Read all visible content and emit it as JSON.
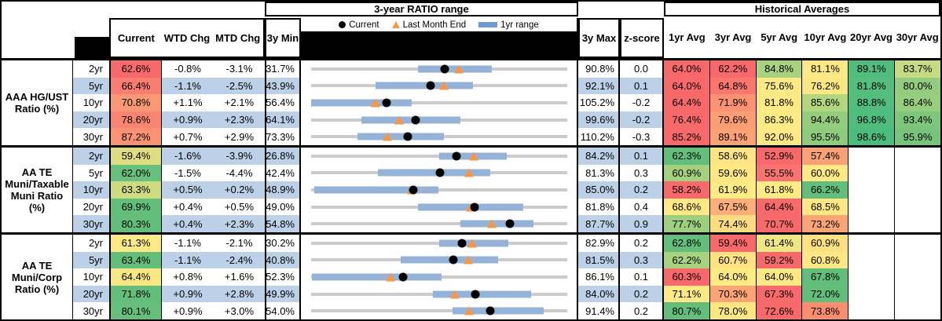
{
  "sections": {
    "range_title": "3-year RATIO range",
    "hist_title": "Historical Averages"
  },
  "legend": {
    "current": "Current",
    "last_month_end": "Last Month End",
    "range_1yr": "1yr range"
  },
  "columns": {
    "current": "Current",
    "wtd": "WTD Chg",
    "mtd": "MTD Chg",
    "min3y": "3y Min",
    "max3y": "3y Max",
    "zscore": "z-score",
    "avgs": [
      "1yr Avg",
      "3yr Avg",
      "5yr Avg",
      "10yr Avg",
      "20yr Avg",
      "30yr Avg"
    ]
  },
  "colors": {
    "stripe": "#BCD0E8",
    "bar_1yr": "#95B3D7",
    "track": "#CBCBCB",
    "marker_orange": "#F79646",
    "red": "#F8696B",
    "yellow": "#FFE984",
    "green": "#63BE7B"
  },
  "groups": [
    {
      "label": "AAA HG/UST Ratio (%)",
      "rows": [
        {
          "tenor": "2yr",
          "current": {
            "text": "62.6%",
            "bg": "#F8696B"
          },
          "wtd": "-0.8%",
          "mtd": "-3.1%",
          "min": {
            "text": "31.7%",
            "v": 31.7
          },
          "max": {
            "text": "90.8%",
            "v": 90.8
          },
          "z": "0.0",
          "cur": 62.6,
          "lme": 65.7,
          "r1": {
            "lo": 56.4,
            "hi": 73.4
          },
          "avgs": [
            {
              "text": "64.0%",
              "bg": "#F8696B"
            },
            {
              "text": "62.2%",
              "bg": "#F8696B"
            },
            {
              "text": "84.8%",
              "bg": "#A8D27F"
            },
            {
              "text": "81.1%",
              "bg": "#FFE984"
            },
            {
              "text": "89.1%",
              "bg": "#50BD7E"
            },
            {
              "text": "83.7%",
              "bg": "#C6DB81"
            }
          ]
        },
        {
          "tenor": "5yr",
          "current": {
            "text": "66.4%",
            "bg": "#F97E71"
          },
          "wtd": "-1.1%",
          "mtd": "-2.5%",
          "min": {
            "text": "43.9%",
            "v": 43.9
          },
          "max": {
            "text": "92.1%",
            "v": 92.1
          },
          "z": "0.1",
          "cur": 66.4,
          "lme": 68.9,
          "r1": {
            "lo": 56.0,
            "hi": 74.3
          },
          "avgs": [
            {
              "text": "64.0%",
              "bg": "#F8696B"
            },
            {
              "text": "64.8%",
              "bg": "#F9776E"
            },
            {
              "text": "75.6%",
              "bg": "#FFE984"
            },
            {
              "text": "76.2%",
              "bg": "#FCE883"
            },
            {
              "text": "81.8%",
              "bg": "#55BE7C"
            },
            {
              "text": "80.0%",
              "bg": "#93CC7E"
            }
          ]
        },
        {
          "tenor": "10yr",
          "current": {
            "text": "70.8%",
            "bg": "#FA9774"
          },
          "wtd": "+1.1%",
          "mtd": "+2.1%",
          "min": {
            "text": "56.4%",
            "v": 56.4
          },
          "max": {
            "text": "105.2%",
            "v": 105.2
          },
          "z": "-0.2",
          "cur": 70.8,
          "lme": 68.7,
          "r1": {
            "lo": 56.4,
            "hi": 75.6
          },
          "avgs": [
            {
              "text": "64.4%",
              "bg": "#F8696B"
            },
            {
              "text": "71.9%",
              "bg": "#FA9273"
            },
            {
              "text": "81.8%",
              "bg": "#FFE984"
            },
            {
              "text": "85.6%",
              "bg": "#B3D67F"
            },
            {
              "text": "88.8%",
              "bg": "#52BD7E"
            },
            {
              "text": "86.4%",
              "bg": "#97CE7E"
            }
          ]
        },
        {
          "tenor": "20yr",
          "current": {
            "text": "78.6%",
            "bg": "#F98471"
          },
          "wtd": "+0.9%",
          "mtd": "+2.3%",
          "min": {
            "text": "64.1%",
            "v": 64.1
          },
          "max": {
            "text": "99.6%",
            "v": 99.6
          },
          "z": "-0.2",
          "cur": 78.6,
          "lme": 76.3,
          "r1": {
            "lo": 71.1,
            "hi": 84.8
          },
          "avgs": [
            {
              "text": "76.4%",
              "bg": "#F8696B"
            },
            {
              "text": "79.6%",
              "bg": "#FB9D75"
            },
            {
              "text": "86.3%",
              "bg": "#FFEB84"
            },
            {
              "text": "94.4%",
              "bg": "#95CD7E"
            },
            {
              "text": "96.8%",
              "bg": "#4FBD7D"
            },
            {
              "text": "93.4%",
              "bg": "#7EC67C"
            }
          ]
        },
        {
          "tenor": "30yr",
          "current": {
            "text": "87.2%",
            "bg": "#FA9273"
          },
          "wtd": "+0.7%",
          "mtd": "+2.9%",
          "min": {
            "text": "73.3%",
            "v": 73.3
          },
          "max": {
            "text": "110.2%",
            "v": 110.2
          },
          "z": "-0.3",
          "cur": 87.2,
          "lme": 84.3,
          "r1": {
            "lo": 80.0,
            "hi": 92.4
          },
          "avgs": [
            {
              "text": "85.2%",
              "bg": "#F8696B"
            },
            {
              "text": "89.1%",
              "bg": "#FBA176"
            },
            {
              "text": "92.0%",
              "bg": "#FFE984"
            },
            {
              "text": "95.5%",
              "bg": "#8FCB7D"
            },
            {
              "text": "98.6%",
              "bg": "#4CBC7C"
            },
            {
              "text": "95.9%",
              "bg": "#78C47C"
            }
          ]
        }
      ]
    },
    {
      "label": "AA TE Muni/Taxable Muni Ratio (%)",
      "rows": [
        {
          "tenor": "2yr",
          "current": {
            "text": "59.4%",
            "bg": "#DEDD82"
          },
          "wtd": "-1.6%",
          "mtd": "-3.9%",
          "min": {
            "text": "26.8%",
            "v": 26.8
          },
          "max": {
            "text": "84.2%",
            "v": 84.2
          },
          "z": "0.1",
          "cur": 59.4,
          "lme": 63.3,
          "r1": {
            "lo": 55.5,
            "hi": 70.7
          },
          "avgs": [
            {
              "text": "62.3%",
              "bg": "#63BE7B"
            },
            {
              "text": "58.6%",
              "bg": "#FFE583"
            },
            {
              "text": "52.9%",
              "bg": "#F8696B"
            },
            {
              "text": "57.4%",
              "bg": "#FAA276"
            },
            null,
            null
          ]
        },
        {
          "tenor": "5yr",
          "current": {
            "text": "62.0%",
            "bg": "#68C07D"
          },
          "wtd": "-1.5%",
          "mtd": "-4.4%",
          "min": {
            "text": "42.4%",
            "v": 42.4
          },
          "max": {
            "text": "81.3%",
            "v": 81.3
          },
          "z": "0.3",
          "cur": 62.0,
          "lme": 66.4,
          "r1": {
            "lo": 52.6,
            "hi": 69.6
          },
          "avgs": [
            {
              "text": "60.9%",
              "bg": "#A5D17F"
            },
            {
              "text": "59.6%",
              "bg": "#FFE884"
            },
            {
              "text": "55.5%",
              "bg": "#F97470"
            },
            {
              "text": "60.0%",
              "bg": "#FFE984"
            },
            null,
            null
          ]
        },
        {
          "tenor": "10yr",
          "current": {
            "text": "63.3%",
            "bg": "#CFDB80"
          },
          "wtd": "+0.5%",
          "mtd": "+0.2%",
          "min": {
            "text": "48.9%",
            "v": 48.9
          },
          "max": {
            "text": "85.0%",
            "v": 85.0
          },
          "z": "0.2",
          "cur": 63.3,
          "lme": 63.1,
          "r1": {
            "lo": 49.3,
            "hi": 66.8
          },
          "avgs": [
            {
              "text": "58.2%",
              "bg": "#F8696B"
            },
            {
              "text": "61.9%",
              "bg": "#FFEB84"
            },
            {
              "text": "61.8%",
              "bg": "#FFEA84"
            },
            {
              "text": "66.2%",
              "bg": "#63BE7B"
            },
            null,
            null
          ]
        },
        {
          "tenor": "20yr",
          "current": {
            "text": "69.9%",
            "bg": "#63BE7B"
          },
          "wtd": "+0.4%",
          "mtd": "+0.5%",
          "min": {
            "text": "49.0%",
            "v": 49.0
          },
          "max": {
            "text": "81.8%",
            "v": 81.8
          },
          "z": "0.4",
          "cur": 69.9,
          "lme": 69.4,
          "r1": {
            "lo": 62.7,
            "hi": 76.2
          },
          "avgs": [
            {
              "text": "68.6%",
              "bg": "#FFE984"
            },
            {
              "text": "67.5%",
              "bg": "#FCAF78"
            },
            {
              "text": "64.4%",
              "bg": "#F8696B"
            },
            {
              "text": "68.5%",
              "bg": "#FEE883"
            },
            null,
            null
          ]
        },
        {
          "tenor": "30yr",
          "current": {
            "text": "80.3%",
            "bg": "#63BE7B"
          },
          "wtd": "+0.4%",
          "mtd": "+2.3%",
          "min": {
            "text": "54.8%",
            "v": 54.8
          },
          "max": {
            "text": "87.7%",
            "v": 87.7
          },
          "z": "0.9",
          "cur": 80.3,
          "lme": 78.0,
          "r1": {
            "lo": 74.0,
            "hi": 83.4
          },
          "avgs": [
            {
              "text": "77.7%",
              "bg": "#9DCF7E"
            },
            {
              "text": "74.4%",
              "bg": "#FFDC81"
            },
            {
              "text": "70.7%",
              "bg": "#F8696B"
            },
            {
              "text": "73.2%",
              "bg": "#FBA476"
            },
            null,
            null
          ]
        }
      ]
    },
    {
      "label": "AA TE Muni/Corp Ratio (%)",
      "rows": [
        {
          "tenor": "2yr",
          "current": {
            "text": "61.3%",
            "bg": "#FFE984"
          },
          "wtd": "-1.1%",
          "mtd": "-2.1%",
          "min": {
            "text": "30.2%",
            "v": 30.2
          },
          "max": {
            "text": "82.9%",
            "v": 82.9
          },
          "z": "0.2",
          "cur": 61.3,
          "lme": 63.4,
          "r1": {
            "lo": 56.6,
            "hi": 70.8
          },
          "avgs": [
            {
              "text": "62.8%",
              "bg": "#63BE7B"
            },
            {
              "text": "59.4%",
              "bg": "#F8696B"
            },
            {
              "text": "61.4%",
              "bg": "#EFE684"
            },
            {
              "text": "60.9%",
              "bg": "#FFE182"
            },
            null,
            null
          ]
        },
        {
          "tenor": "5yr",
          "current": {
            "text": "63.4%",
            "bg": "#63BE7B"
          },
          "wtd": "-1.1%",
          "mtd": "-2.4%",
          "min": {
            "text": "40.8%",
            "v": 40.8
          },
          "max": {
            "text": "81.5%",
            "v": 81.5
          },
          "z": "0.3",
          "cur": 63.4,
          "lme": 65.8,
          "r1": {
            "lo": 55.0,
            "hi": 70.5
          },
          "avgs": [
            {
              "text": "62.2%",
              "bg": "#A9D27F"
            },
            {
              "text": "60.7%",
              "bg": "#FFE383"
            },
            {
              "text": "59.2%",
              "bg": "#F8696B"
            },
            {
              "text": "60.8%",
              "bg": "#FFE884"
            },
            null,
            null
          ]
        },
        {
          "tenor": "10yr",
          "current": {
            "text": "64.4%",
            "bg": "#F9E783"
          },
          "wtd": "+0.8%",
          "mtd": "+1.6%",
          "min": {
            "text": "52.3%",
            "v": 52.3
          },
          "max": {
            "text": "86.1%",
            "v": 86.1
          },
          "z": "0.1",
          "cur": 64.4,
          "lme": 62.8,
          "r1": {
            "lo": 52.4,
            "hi": 69.5
          },
          "avgs": [
            {
              "text": "60.3%",
              "bg": "#F8696B"
            },
            {
              "text": "64.0%",
              "bg": "#FFEA84"
            },
            {
              "text": "64.0%",
              "bg": "#FFE984"
            },
            {
              "text": "67.8%",
              "bg": "#63BE7B"
            },
            null,
            null
          ]
        },
        {
          "tenor": "20yr",
          "current": {
            "text": "71.8%",
            "bg": "#63BE7B"
          },
          "wtd": "+0.9%",
          "mtd": "+2.8%",
          "min": {
            "text": "49.9%",
            "v": 49.9
          },
          "max": {
            "text": "84.0%",
            "v": 84.0
          },
          "z": "0.2",
          "cur": 71.8,
          "lme": 69.0,
          "r1": {
            "lo": 66.1,
            "hi": 79.2
          },
          "avgs": [
            {
              "text": "71.1%",
              "bg": "#FFE984"
            },
            {
              "text": "70.3%",
              "bg": "#FBA476"
            },
            {
              "text": "67.3%",
              "bg": "#F8696B"
            },
            {
              "text": "72.0%",
              "bg": "#63BE7B"
            },
            null,
            null
          ]
        },
        {
          "tenor": "30yr",
          "current": {
            "text": "80.1%",
            "bg": "#66BF7C"
          },
          "wtd": "+0.9%",
          "mtd": "+3.0%",
          "min": {
            "text": "54.0%",
            "v": 54.0
          },
          "max": {
            "text": "91.4%",
            "v": 91.4
          },
          "z": "0.2",
          "cur": 80.1,
          "lme": 77.1,
          "r1": {
            "lo": 74.7,
            "hi": 88.0
          },
          "avgs": [
            {
              "text": "80.7%",
              "bg": "#63BE7B"
            },
            {
              "text": "78.0%",
              "bg": "#FFE884"
            },
            {
              "text": "72.6%",
              "bg": "#F8696B"
            },
            {
              "text": "73.8%",
              "bg": "#F98D70"
            },
            null,
            null
          ]
        }
      ]
    }
  ],
  "chart_data": {
    "type": "range",
    "title": "3-year RATIO range",
    "legend_position": "top",
    "legend": [
      "Current",
      "Last Month End",
      "1yr range"
    ],
    "rows": [
      {
        "group": "AAA HG/UST Ratio (%)",
        "tenor": "2yr",
        "min3y": 31.7,
        "max3y": 90.8,
        "range1yr": [
          56.4,
          73.4
        ],
        "current": 62.6,
        "last_month_end": 65.7
      },
      {
        "group": "AAA HG/UST Ratio (%)",
        "tenor": "5yr",
        "min3y": 43.9,
        "max3y": 92.1,
        "range1yr": [
          56.0,
          74.3
        ],
        "current": 66.4,
        "last_month_end": 68.9
      },
      {
        "group": "AAA HG/UST Ratio (%)",
        "tenor": "10yr",
        "min3y": 56.4,
        "max3y": 105.2,
        "range1yr": [
          56.4,
          75.6
        ],
        "current": 70.8,
        "last_month_end": 68.7
      },
      {
        "group": "AAA HG/UST Ratio (%)",
        "tenor": "20yr",
        "min3y": 64.1,
        "max3y": 99.6,
        "range1yr": [
          71.1,
          84.8
        ],
        "current": 78.6,
        "last_month_end": 76.3
      },
      {
        "group": "AAA HG/UST Ratio (%)",
        "tenor": "30yr",
        "min3y": 73.3,
        "max3y": 110.2,
        "range1yr": [
          80.0,
          92.4
        ],
        "current": 87.2,
        "last_month_end": 84.3
      },
      {
        "group": "AA TE Muni/Taxable Muni Ratio (%)",
        "tenor": "2yr",
        "min3y": 26.8,
        "max3y": 84.2,
        "range1yr": [
          55.5,
          70.7
        ],
        "current": 59.4,
        "last_month_end": 63.3
      },
      {
        "group": "AA TE Muni/Taxable Muni Ratio (%)",
        "tenor": "5yr",
        "min3y": 42.4,
        "max3y": 81.3,
        "range1yr": [
          52.6,
          69.6
        ],
        "current": 62.0,
        "last_month_end": 66.4
      },
      {
        "group": "AA TE Muni/Taxable Muni Ratio (%)",
        "tenor": "10yr",
        "min3y": 48.9,
        "max3y": 85.0,
        "range1yr": [
          49.3,
          66.8
        ],
        "current": 63.3,
        "last_month_end": 63.1
      },
      {
        "group": "AA TE Muni/Taxable Muni Ratio (%)",
        "tenor": "20yr",
        "min3y": 49.0,
        "max3y": 81.8,
        "range1yr": [
          62.7,
          76.2
        ],
        "current": 69.9,
        "last_month_end": 69.4
      },
      {
        "group": "AA TE Muni/Taxable Muni Ratio (%)",
        "tenor": "30yr",
        "min3y": 54.8,
        "max3y": 87.7,
        "range1yr": [
          74.0,
          83.4
        ],
        "current": 80.3,
        "last_month_end": 78.0
      },
      {
        "group": "AA TE Muni/Corp Ratio (%)",
        "tenor": "2yr",
        "min3y": 30.2,
        "max3y": 82.9,
        "range1yr": [
          56.6,
          70.8
        ],
        "current": 61.3,
        "last_month_end": 63.4
      },
      {
        "group": "AA TE Muni/Corp Ratio (%)",
        "tenor": "5yr",
        "min3y": 40.8,
        "max3y": 81.5,
        "range1yr": [
          55.0,
          70.5
        ],
        "current": 63.4,
        "last_month_end": 65.8
      },
      {
        "group": "AA TE Muni/Corp Ratio (%)",
        "tenor": "10yr",
        "min3y": 52.3,
        "max3y": 86.1,
        "range1yr": [
          52.4,
          69.5
        ],
        "current": 64.4,
        "last_month_end": 62.8
      },
      {
        "group": "AA TE Muni/Corp Ratio (%)",
        "tenor": "20yr",
        "min3y": 49.9,
        "max3y": 84.0,
        "range1yr": [
          66.1,
          79.2
        ],
        "current": 71.8,
        "last_month_end": 69.0
      },
      {
        "group": "AA TE Muni/Corp Ratio (%)",
        "tenor": "30yr",
        "min3y": 54.0,
        "max3y": 91.4,
        "range1yr": [
          74.7,
          88.0
        ],
        "current": 80.1,
        "last_month_end": 77.1
      }
    ]
  }
}
